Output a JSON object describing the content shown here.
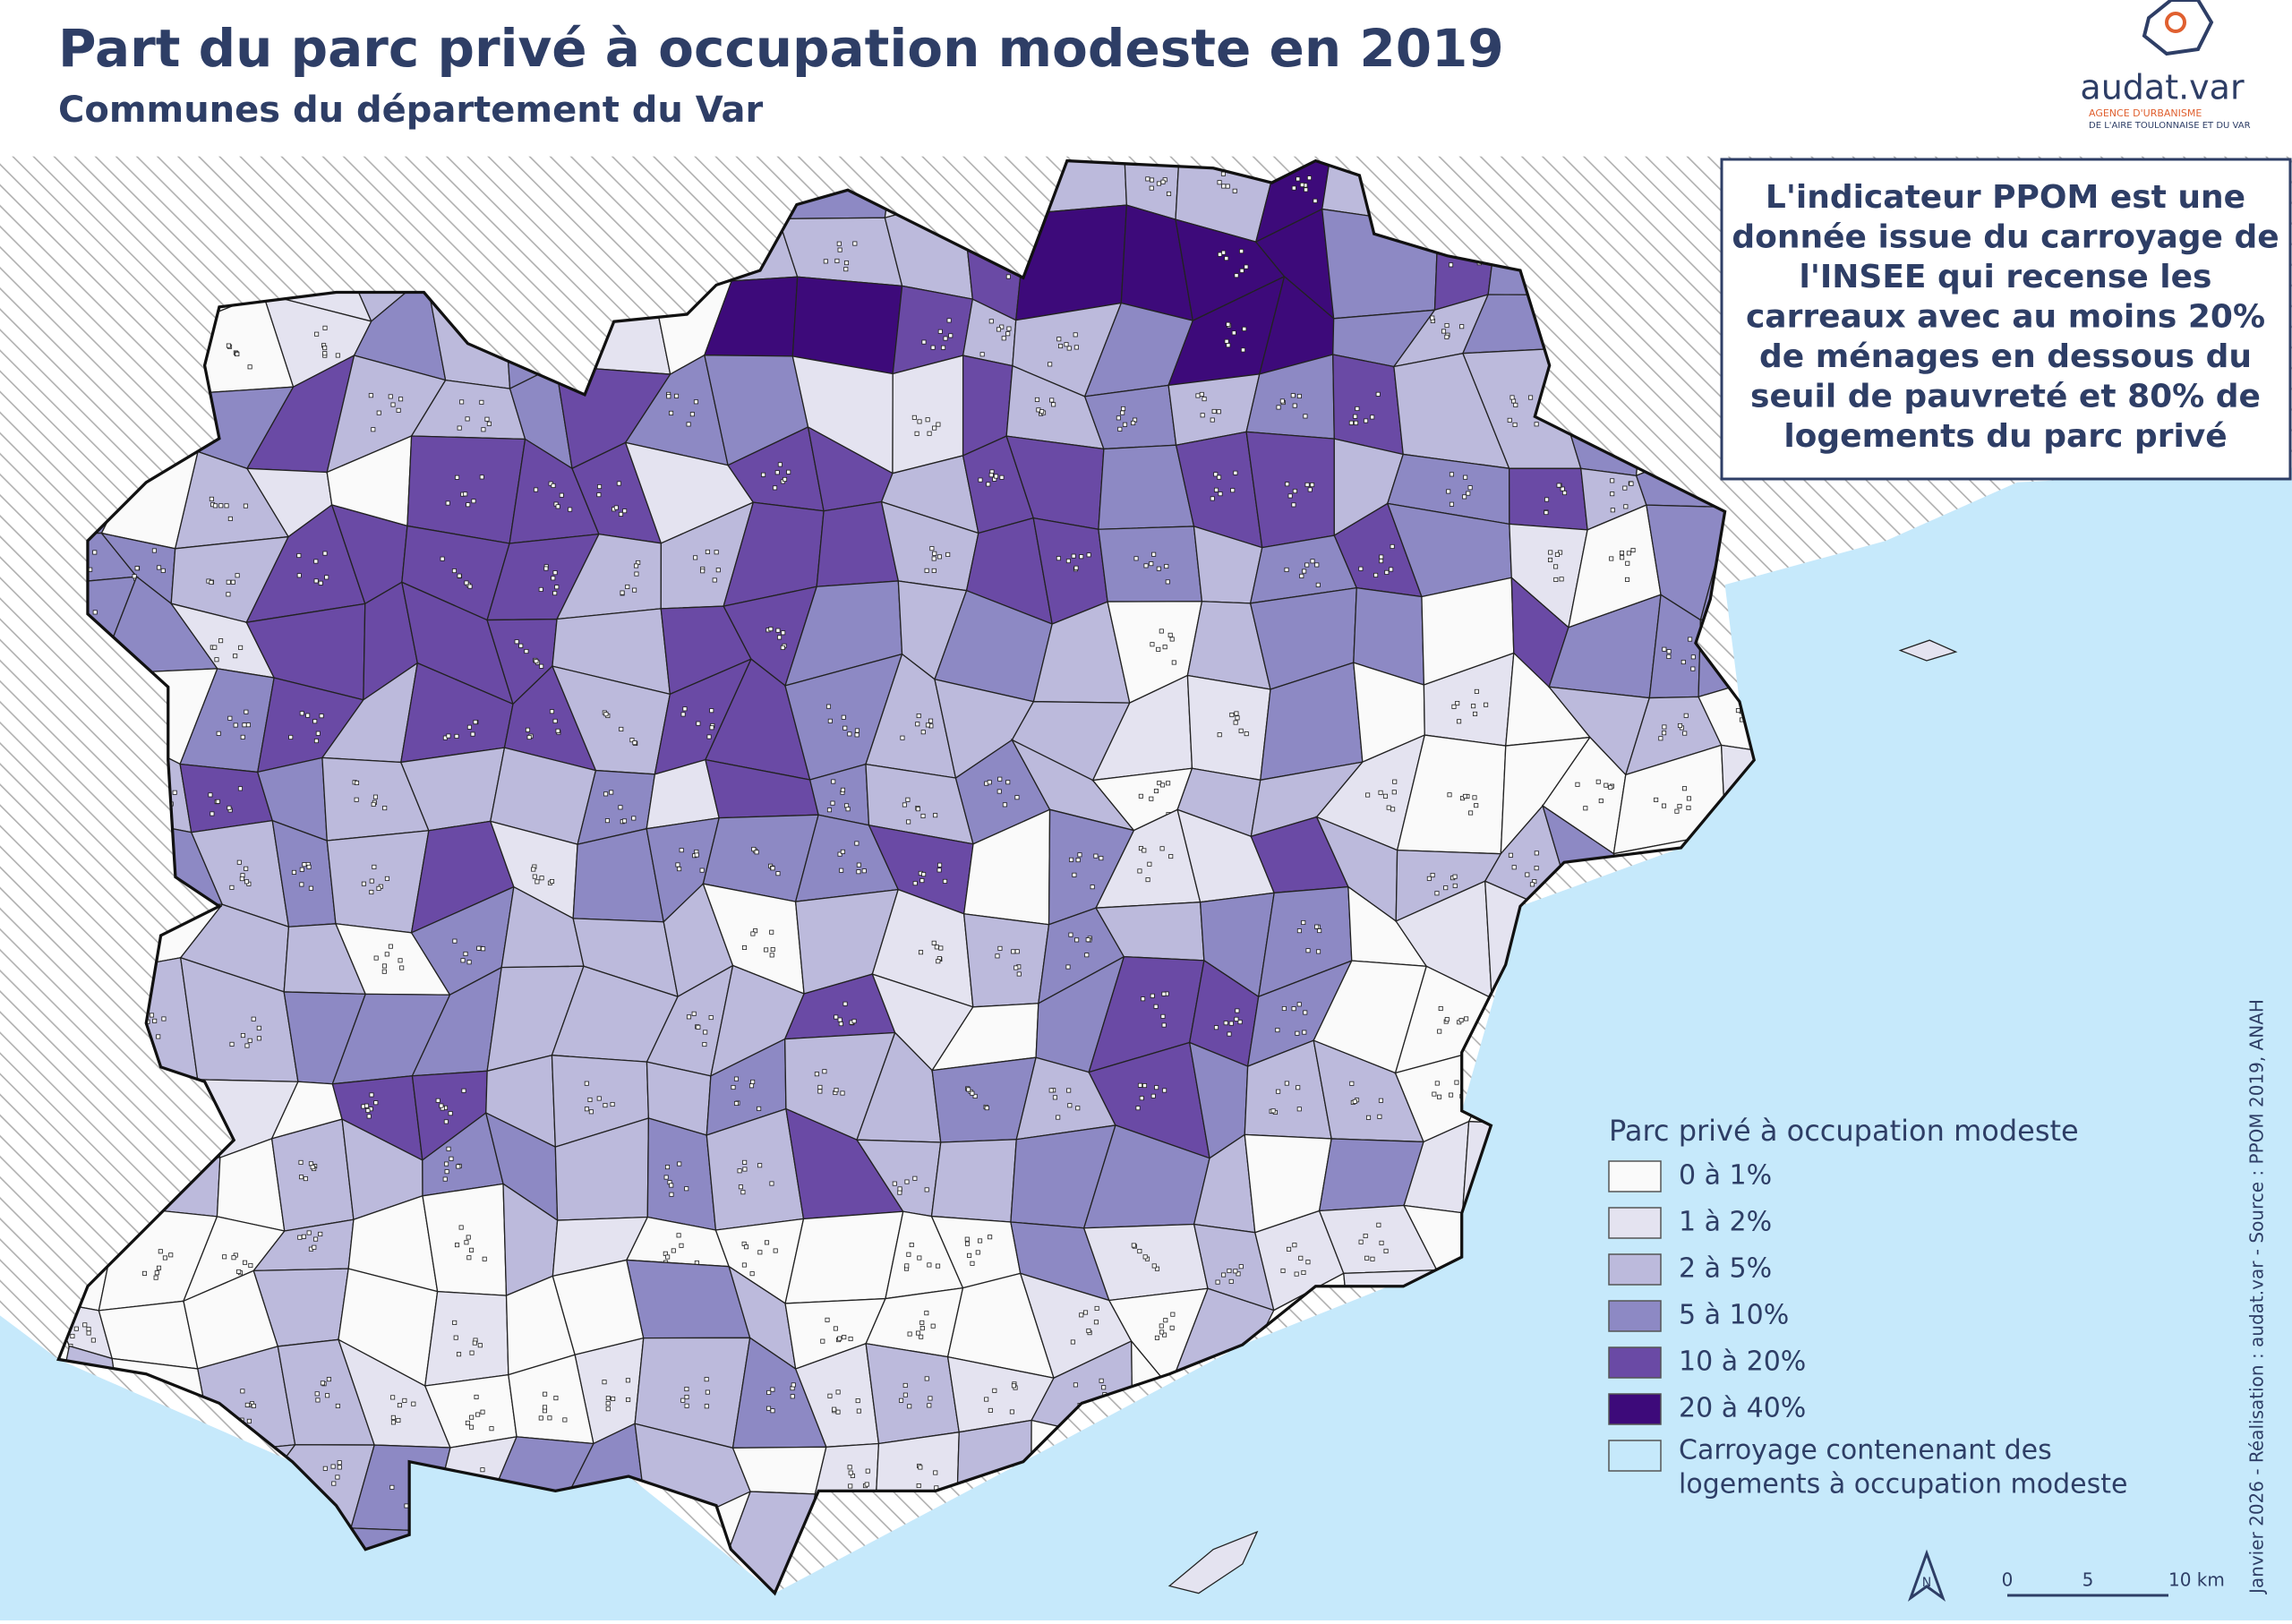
{
  "header": {
    "title": "Part du parc privé à occupation modeste en 2019",
    "subtitle": "Communes du département du Var"
  },
  "logo": {
    "name": "audat.var",
    "line1": "AGENCE D'URBANISME",
    "line2": "DE L'AIRE TOULONNAISE ET DU VAR"
  },
  "info_box": {
    "lines": [
      "L'indicateur PPOM est une",
      "donnée issue du carroyage de",
      "l'INSEE qui recense les",
      "carreaux avec au moins 20%",
      "de ménages en dessous du",
      "seuil de pauvreté et 80% de",
      "logements du parc privé"
    ]
  },
  "legend": {
    "title": "Parc privé à occupation modeste",
    "items": [
      {
        "label": "0 à 1%",
        "color": "#fafafa"
      },
      {
        "label": "1 à 2%",
        "color": "#e4e3f0"
      },
      {
        "label": "2 à 5%",
        "color": "#bcbadc"
      },
      {
        "label": "5 à 10%",
        "color": "#8d89c4"
      },
      {
        "label": "10 à 20%",
        "color": "#6a4aa5"
      },
      {
        "label": "20 à 40%",
        "color": "#3d0a7a"
      },
      {
        "label": [
          "Carroyage contenenant des",
          "logements à occupation modeste"
        ]
      }
    ]
  },
  "scale_bar": {
    "labels": [
      "0",
      "5",
      "10 km"
    ]
  },
  "north": "N",
  "credit": "Janvier 2026 - Réalisation : audat.var - Source : PPOM 2019, ANAH"
}
